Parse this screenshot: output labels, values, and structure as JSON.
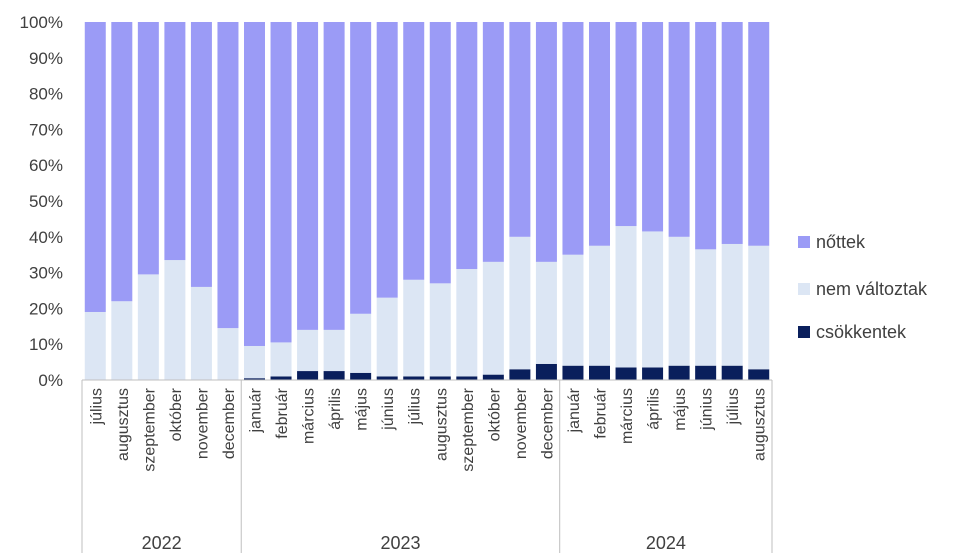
{
  "chart_data": {
    "type": "bar",
    "stacked": "percent",
    "y_ticks": [
      "0%",
      "10%",
      "20%",
      "30%",
      "40%",
      "50%",
      "60%",
      "70%",
      "80%",
      "90%",
      "100%"
    ],
    "ylim": [
      0,
      100
    ],
    "legend_position": "right",
    "groups": [
      {
        "label": "2022",
        "months": [
          "július",
          "augusztus",
          "szeptember",
          "október",
          "november",
          "december"
        ]
      },
      {
        "label": "2023",
        "months": [
          "január",
          "február",
          "március",
          "április",
          "május",
          "június",
          "július",
          "augusztus",
          "szeptember",
          "október",
          "november",
          "december"
        ]
      },
      {
        "label": "2024",
        "months": [
          "január",
          "február",
          "március",
          "április",
          "május",
          "június",
          "július",
          "augusztus"
        ]
      }
    ],
    "series": [
      {
        "name": "csökkentek",
        "color": "#0a1f5c",
        "values": [
          0,
          0,
          0,
          0,
          0,
          0,
          0.5,
          1,
          2.5,
          2.5,
          2,
          1,
          1,
          1,
          1,
          1.5,
          3,
          4.5,
          4,
          4,
          3.5,
          3.5,
          4,
          4,
          4,
          3
        ]
      },
      {
        "name": "nem változtak",
        "color": "#dce6f4",
        "values": [
          19,
          22,
          29.5,
          33.5,
          26,
          14.5,
          9,
          9.5,
          11.5,
          11.5,
          16.5,
          22,
          27,
          26,
          30,
          31.5,
          37,
          28.5,
          31,
          33.5,
          39.5,
          38,
          36,
          32.5,
          34,
          34.5
        ]
      },
      {
        "name": "nőttek",
        "color": "#9b9bf6",
        "values": [
          81,
          78,
          70.5,
          66.5,
          74,
          85.5,
          90.5,
          89.5,
          86,
          86,
          81.5,
          77,
          72,
          73,
          69,
          67,
          60,
          67,
          65,
          62.5,
          57,
          58.5,
          60,
          63.5,
          62,
          62.5
        ]
      }
    ],
    "legend_order": [
      "nőttek",
      "nem változtak",
      "csökkentek"
    ]
  }
}
